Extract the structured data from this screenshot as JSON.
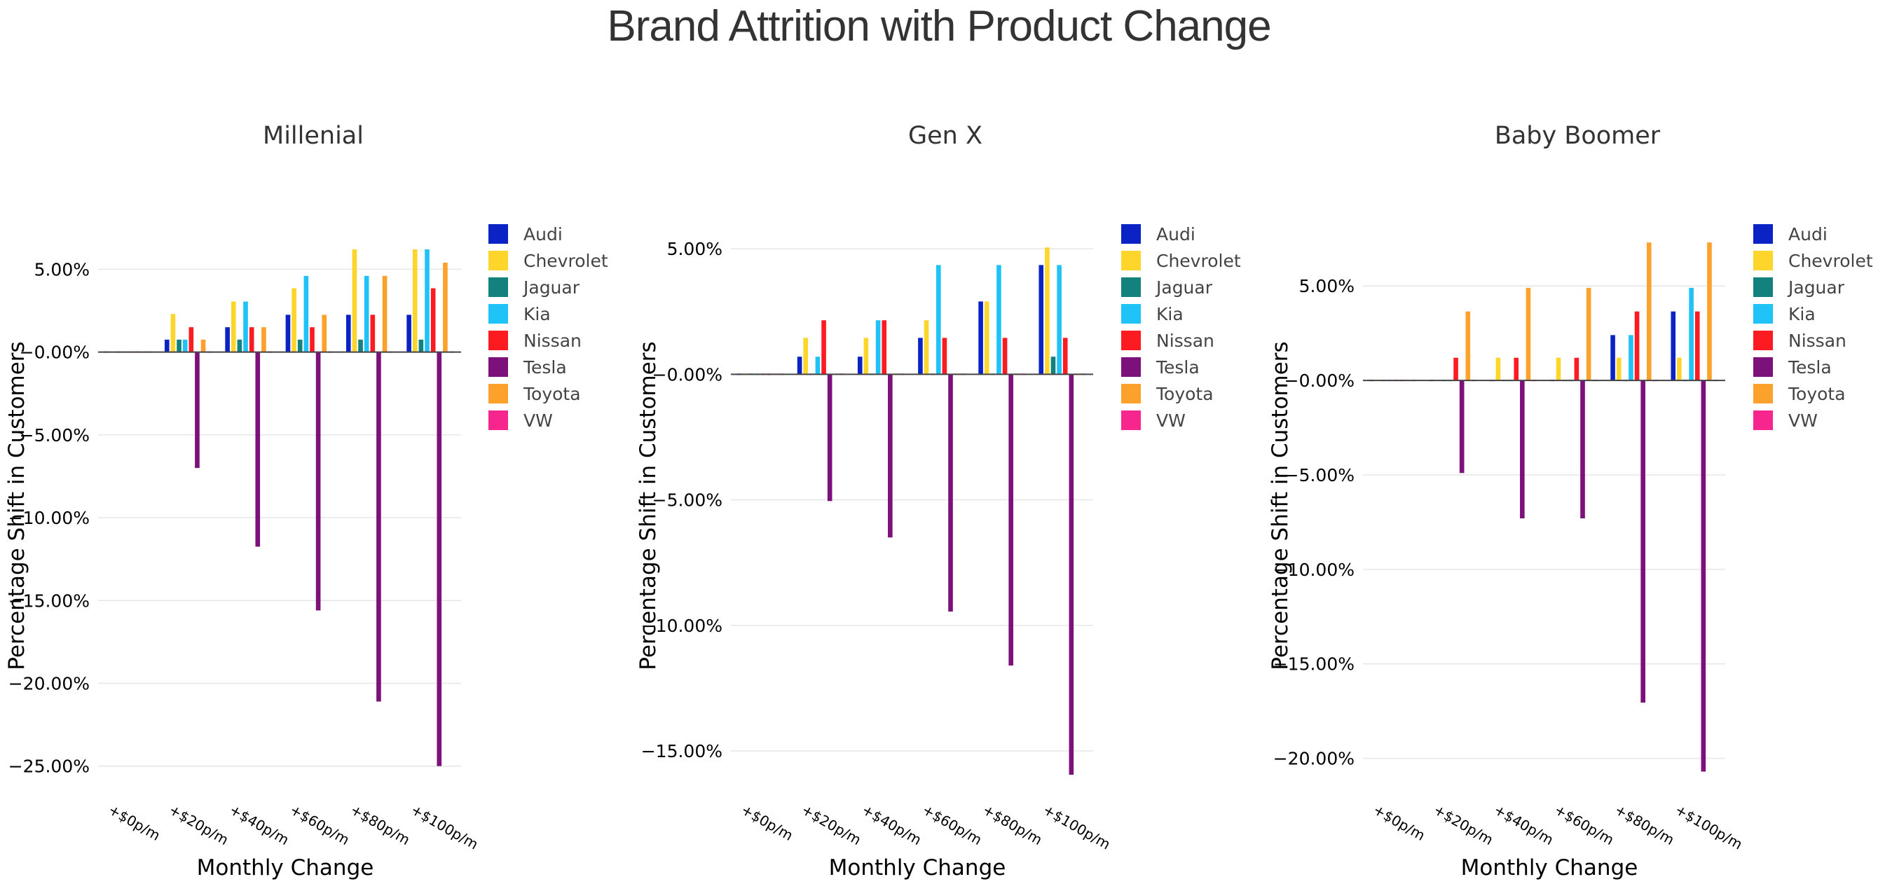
{
  "page": {
    "title": "Brand Attrition with Product Change"
  },
  "chart_data": {
    "type": "bar",
    "title": "Brand Attrition with Product Change",
    "categories": [
      "+$0p/m",
      "+$20p/m",
      "+$40p/m",
      "+$60p/m",
      "+$80p/m",
      "+$100p/m"
    ],
    "xlabel": "Monthly Change",
    "ylabel": "Percentage Shift in Customers",
    "legend_placement": "right",
    "grid": true,
    "brands": [
      {
        "name": "Audi",
        "color": "#0b23c4"
      },
      {
        "name": "Chevrolet",
        "color": "#fed52a"
      },
      {
        "name": "Jaguar",
        "color": "#13827f"
      },
      {
        "name": "Kia",
        "color": "#1fc3f8"
      },
      {
        "name": "Nissan",
        "color": "#fb1b20"
      },
      {
        "name": "Tesla",
        "color": "#7c117c"
      },
      {
        "name": "Toyota",
        "color": "#fda12d"
      },
      {
        "name": "VW",
        "color": "#f7268e"
      }
    ],
    "panels": [
      {
        "title": "Millenial",
        "ylim": [
          -25.9,
          7.3
        ],
        "yticks": [
          5,
          0,
          -5,
          -10,
          -15,
          -20,
          -25
        ],
        "yticklabels": [
          "5.00%",
          "−0.00%",
          "−5.00%",
          "−10.00%",
          "−15.00%",
          "−20.00%",
          "−25.00%"
        ],
        "series": [
          {
            "name": "Audi",
            "values": [
              0,
              0.75,
              1.5,
              2.25,
              2.25,
              2.25
            ]
          },
          {
            "name": "Chevrolet",
            "values": [
              0,
              2.3,
              3.05,
              3.85,
              6.2,
              6.2
            ]
          },
          {
            "name": "Jaguar",
            "values": [
              0,
              0.75,
              0.75,
              0.75,
              0.75,
              0.75
            ]
          },
          {
            "name": "Kia",
            "values": [
              0,
              0.75,
              3.05,
              4.6,
              4.6,
              6.2
            ]
          },
          {
            "name": "Nissan",
            "values": [
              0,
              1.5,
              1.5,
              1.5,
              2.25,
              3.85
            ]
          },
          {
            "name": "Tesla",
            "values": [
              0,
              -7.0,
              -11.75,
              -15.6,
              -21.1,
              -25.0
            ]
          },
          {
            "name": "Toyota",
            "values": [
              0,
              0.75,
              1.5,
              2.25,
              4.6,
              5.4
            ]
          },
          {
            "name": "VW",
            "values": [
              0,
              0,
              0,
              0,
              0,
              0
            ]
          }
        ]
      },
      {
        "title": "Gen X",
        "ylim": [
          -16.2,
          5.7
        ],
        "yticks": [
          5,
          0,
          -5,
          -10,
          -15
        ],
        "yticklabels": [
          "5.00%",
          "−0.00%",
          "−5.00%",
          "−10.00%",
          "−15.00%"
        ],
        "series": [
          {
            "name": "Audi",
            "values": [
              0,
              0.7,
              0.7,
              1.45,
              2.9,
              4.35
            ]
          },
          {
            "name": "Chevrolet",
            "values": [
              0,
              1.45,
              1.45,
              2.15,
              2.9,
              5.05
            ]
          },
          {
            "name": "Jaguar",
            "values": [
              0,
              0,
              0,
              0,
              0,
              0.7
            ]
          },
          {
            "name": "Kia",
            "values": [
              0,
              0.7,
              2.15,
              4.35,
              4.35,
              4.35
            ]
          },
          {
            "name": "Nissan",
            "values": [
              0,
              2.15,
              2.15,
              1.45,
              1.45,
              1.45
            ]
          },
          {
            "name": "Tesla",
            "values": [
              0,
              -5.05,
              -6.5,
              -9.45,
              -11.6,
              -15.95
            ]
          },
          {
            "name": "Toyota",
            "values": [
              0,
              0,
              0,
              0,
              0,
              0
            ]
          },
          {
            "name": "VW",
            "values": [
              0,
              0,
              0,
              0,
              0,
              0
            ]
          }
        ]
      },
      {
        "title": "Baby Boomer",
        "ylim": [
          -21.2,
          7.9
        ],
        "yticks": [
          5,
          0,
          -5,
          -10,
          -15,
          -20
        ],
        "yticklabels": [
          "5.00%",
          "−0.00%",
          "−5.00%",
          "−10.00%",
          "−15.00%",
          "−20.00%"
        ],
        "series": [
          {
            "name": "Audi",
            "values": [
              0,
              0,
              0,
              0,
              2.4,
              3.65
            ]
          },
          {
            "name": "Chevrolet",
            "values": [
              0,
              0,
              1.2,
              1.2,
              1.2,
              1.2
            ]
          },
          {
            "name": "Jaguar",
            "values": [
              0,
              0,
              0,
              0,
              0,
              0
            ]
          },
          {
            "name": "Kia",
            "values": [
              0,
              0,
              0,
              0,
              2.4,
              4.9
            ]
          },
          {
            "name": "Nissan",
            "values": [
              0,
              1.2,
              1.2,
              1.2,
              3.65,
              3.65
            ]
          },
          {
            "name": "Tesla",
            "values": [
              0,
              -4.9,
              -7.3,
              -7.3,
              -17.05,
              -20.7
            ]
          },
          {
            "name": "Toyota",
            "values": [
              0,
              3.65,
              4.9,
              4.9,
              7.3,
              7.3
            ]
          },
          {
            "name": "VW",
            "values": [
              0,
              0,
              0,
              0,
              0,
              0
            ]
          }
        ]
      }
    ]
  }
}
